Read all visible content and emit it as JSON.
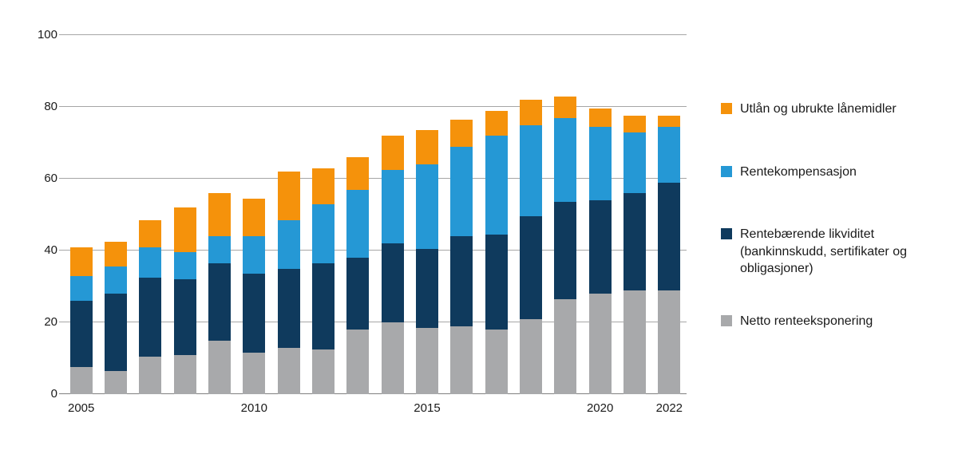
{
  "chart_data": {
    "type": "bar",
    "stacked": true,
    "title": "",
    "xlabel": "",
    "ylabel": "",
    "ylim": [
      0,
      100
    ],
    "y_ticks": [
      0,
      20,
      40,
      60,
      80,
      100
    ],
    "grid": true,
    "legend_position": "right",
    "categories": [
      "2005",
      "2006",
      "2007",
      "2008",
      "2009",
      "2010",
      "2011",
      "2012",
      "2013",
      "2014",
      "2015",
      "2016",
      "2017",
      "2018",
      "2019",
      "2020",
      "2021",
      "2022"
    ],
    "x_ticks": [
      {
        "label": "2005",
        "index": 0
      },
      {
        "label": "2010",
        "index": 5
      },
      {
        "label": "2015",
        "index": 10
      },
      {
        "label": "2020",
        "index": 15
      },
      {
        "label": "2022",
        "index": 17
      }
    ],
    "series": [
      {
        "name": "Netto renteeksponering",
        "color": "#a8a9ab",
        "values": [
          7.5,
          6.5,
          10.5,
          11,
          15,
          11.5,
          13,
          12.5,
          18,
          20,
          18.5,
          19,
          18,
          21,
          26.5,
          28,
          29,
          29
        ]
      },
      {
        "name": "Rentebærende likviditet (bankinnskudd, sertifikater og obligasjoner)",
        "color": "#0f3a5d",
        "values": [
          18.5,
          21.5,
          22,
          21,
          21.5,
          22,
          22,
          24,
          20,
          22,
          22,
          25,
          26.5,
          28.5,
          27,
          26,
          27,
          30
        ]
      },
      {
        "name": "Rentekompensasjon",
        "color": "#2598d5",
        "values": [
          7,
          7.5,
          8.5,
          7.5,
          7.5,
          10.5,
          13.5,
          16.5,
          19,
          20.5,
          23.5,
          25,
          27.5,
          25.5,
          23.5,
          20.5,
          17,
          15.5
        ]
      },
      {
        "name": "Utlån og ubrukte lånemidler",
        "color": "#f5920b",
        "values": [
          8,
          7,
          7.5,
          12.5,
          12,
          10.5,
          13.5,
          10,
          9,
          9.5,
          9.5,
          7.5,
          7,
          7,
          6,
          5,
          4.5,
          3
        ]
      }
    ],
    "legend": [
      {
        "label": "Utlån og ubrukte lånemidler",
        "color": "#f5920b"
      },
      {
        "label": "Rentekompensasjon",
        "color": "#2598d5"
      },
      {
        "label": "Rentebærende likviditet (bankinnskudd, sertifikater og obligasjoner)",
        "color": "#0f3a5d"
      },
      {
        "label": "Netto renteeksponering",
        "color": "#a8a9ab"
      }
    ]
  }
}
